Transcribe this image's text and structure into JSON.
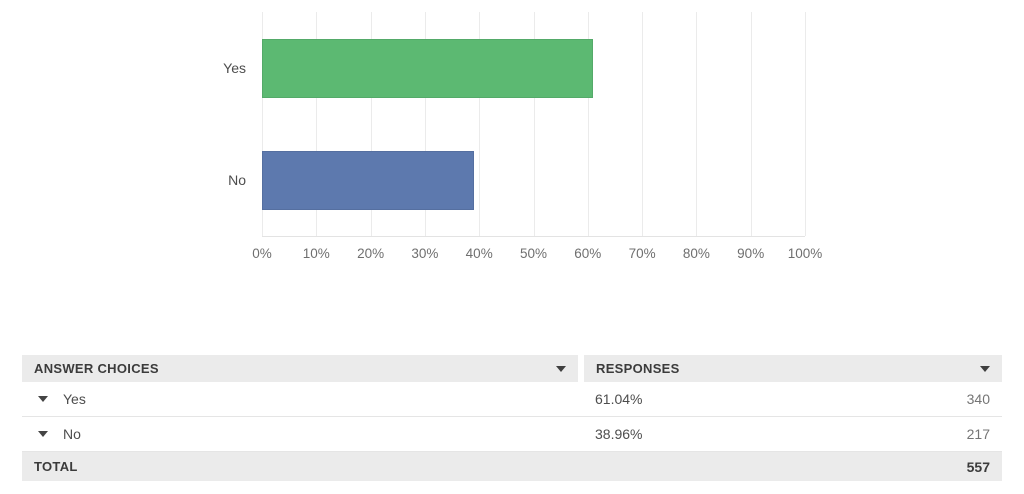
{
  "chart_data": {
    "type": "bar",
    "orientation": "horizontal",
    "title": "",
    "xlabel": "",
    "ylabel": "",
    "categories": [
      "Yes",
      "No"
    ],
    "values": [
      61.04,
      38.96
    ],
    "value_unit": "percent",
    "bar_colors": [
      "#5cb972",
      "#5d79ae"
    ],
    "xlim": [
      0,
      100
    ],
    "x_ticks": [
      "0%",
      "10%",
      "20%",
      "30%",
      "40%",
      "50%",
      "60%",
      "70%",
      "80%",
      "90%",
      "100%"
    ],
    "grid": "vertical",
    "legend": "none"
  },
  "table": {
    "headers": {
      "choices": "ANSWER CHOICES",
      "responses": "RESPONSES"
    },
    "rows": [
      {
        "choice": "Yes",
        "percent": "61.04%",
        "count": "340"
      },
      {
        "choice": "No",
        "percent": "38.96%",
        "count": "217"
      }
    ],
    "total": {
      "label": "TOTAL",
      "count": "557"
    }
  }
}
